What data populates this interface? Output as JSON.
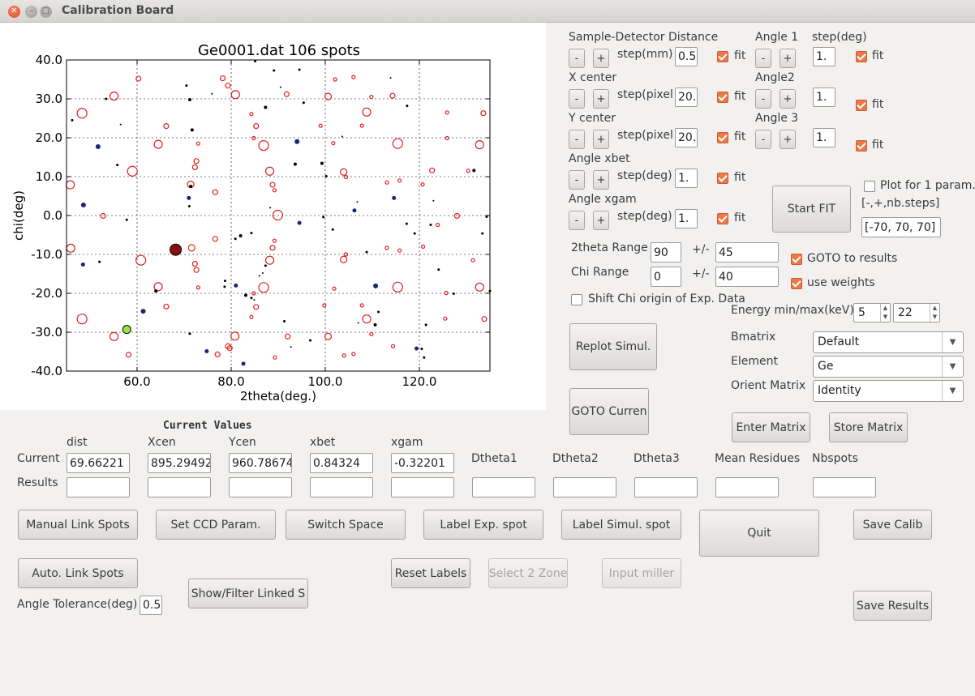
{
  "window": {
    "title": "Calibration Board"
  },
  "chart_data": {
    "type": "scatter",
    "title": "Ge0001.dat 106 spots",
    "xlabel": "2theta(deg.)",
    "ylabel": "chi(deg)",
    "xlim": [
      45,
      135
    ],
    "ylim": [
      -40,
      40
    ],
    "xticks": [
      "60.0",
      "80.0",
      "100.0",
      "120.0"
    ],
    "xtick_values": [
      60,
      80,
      100,
      120
    ],
    "yticks": [
      "40.0",
      "30.0",
      "20.0",
      "10.0",
      "0.0",
      "-10.0",
      "-20.0",
      "-30.0",
      "-40.0"
    ],
    "ytick_values": [
      40,
      30,
      20,
      10,
      0,
      -10,
      -20,
      -30,
      -40
    ],
    "grid": true,
    "series": [
      {
        "style": "simulated open red circles",
        "points": [
          [
            48.3,
            26.3,
            6
          ],
          [
            55.1,
            30.7,
            5
          ],
          [
            45.8,
            7.9,
            5
          ],
          [
            52.8,
            -0.1,
            3
          ],
          [
            45.9,
            -8.4,
            5
          ],
          [
            48.3,
            -26.6,
            6
          ],
          [
            55.1,
            -31.1,
            5
          ],
          [
            60.3,
            35.2,
            3
          ],
          [
            58.2,
            -35.8,
            3
          ],
          [
            59.0,
            11.4,
            6
          ],
          [
            60.8,
            -11.5,
            6
          ],
          [
            64.5,
            18.3,
            5
          ],
          [
            64.5,
            -18.3,
            5
          ],
          [
            66.2,
            23.0,
            3
          ],
          [
            66.2,
            -23.4,
            3
          ],
          [
            71.4,
            8.0,
            4
          ],
          [
            71.6,
            -8.3,
            4
          ],
          [
            72.3,
            12.4,
            3
          ],
          [
            72.3,
            -12.4,
            3
          ],
          [
            73.0,
            18.5,
            2
          ],
          [
            73.0,
            -18.5,
            2
          ],
          [
            72.6,
            14.0,
            3
          ],
          [
            72.6,
            -14.0,
            3
          ],
          [
            78.2,
            35.3,
            3
          ],
          [
            79.3,
            33.4,
            3
          ],
          [
            80.9,
            31.1,
            5
          ],
          [
            79.3,
            -33.6,
            3
          ],
          [
            80.8,
            -31.0,
            5
          ],
          [
            76.6,
            6.0,
            3
          ],
          [
            76.6,
            -6.0,
            3
          ],
          [
            77.1,
            -35.7,
            3
          ],
          [
            79.7,
            -34.1,
            3
          ],
          [
            84.3,
            26.1,
            2
          ],
          [
            84.3,
            -26.1,
            2
          ],
          [
            85.3,
            23.0,
            3
          ],
          [
            85.3,
            -23.5,
            3
          ],
          [
            84.8,
            19.9,
            2
          ],
          [
            84.8,
            -20.0,
            2
          ],
          [
            86.9,
            18.0,
            6
          ],
          [
            86.9,
            -18.5,
            6
          ],
          [
            88.2,
            11.4,
            5
          ],
          [
            88.8,
            7.9,
            3
          ],
          [
            88.2,
            -11.5,
            5
          ],
          [
            88.8,
            -8.3,
            3
          ],
          [
            89.9,
            0.1,
            6
          ],
          [
            89.2,
            -6.5,
            2
          ],
          [
            89.2,
            6.5,
            2
          ],
          [
            89.3,
            -36.5,
            2
          ],
          [
            92.0,
            -31.1,
            3
          ],
          [
            91.8,
            31.2,
            3
          ],
          [
            99.0,
            23.1,
            2
          ],
          [
            99.8,
            -23.1,
            2
          ],
          [
            101.7,
            18.6,
            2
          ],
          [
            101.9,
            -18.8,
            2
          ],
          [
            100.6,
            30.6,
            4
          ],
          [
            100.6,
            -31.1,
            4
          ],
          [
            102.1,
            35.0,
            2
          ],
          [
            104.0,
            -36.0,
            2
          ],
          [
            104.4,
            9.9,
            2
          ],
          [
            104.4,
            -10.0,
            2
          ],
          [
            103.9,
            11.2,
            4
          ],
          [
            103.9,
            -11.3,
            4
          ],
          [
            106.0,
            35.6,
            2
          ],
          [
            106.0,
            -35.6,
            2
          ],
          [
            107.8,
            -23.1,
            2
          ],
          [
            107.8,
            23.1,
            2
          ],
          [
            108.8,
            26.6,
            5
          ],
          [
            108.8,
            -26.6,
            5
          ],
          [
            109.8,
            -30.5,
            2
          ],
          [
            109.8,
            30.5,
            2
          ],
          [
            113.1,
            -8.3,
            2
          ],
          [
            114.4,
            -33.6,
            2
          ],
          [
            115.4,
            18.5,
            6
          ],
          [
            115.4,
            -18.4,
            6
          ],
          [
            114.3,
            30.8,
            3
          ],
          [
            115.8,
            9.0,
            2
          ],
          [
            115.8,
            -9.0,
            2
          ],
          [
            113.1,
            8.5,
            2
          ],
          [
            120.7,
            8.0,
            2
          ],
          [
            120.8,
            -8.0,
            2
          ],
          [
            122.7,
            11.6,
            3
          ],
          [
            123.9,
            -2.4,
            2
          ],
          [
            128.0,
            -0.1,
            3
          ],
          [
            125.9,
            26.5,
            2
          ],
          [
            125.5,
            -26.5,
            2
          ],
          [
            125.7,
            -19.9,
            2
          ],
          [
            125.9,
            19.9,
            2
          ],
          [
            130.4,
            11.5,
            2
          ],
          [
            131.4,
            -11.5,
            2
          ],
          [
            132.8,
            18.2,
            5
          ],
          [
            132.8,
            -18.4,
            5
          ],
          [
            133.6,
            26.3,
            3
          ],
          [
            133.8,
            -26.6,
            3
          ]
        ]
      },
      {
        "style": "experimental filled blue/black dots",
        "points": [
          [
            46.2,
            24.5,
            1.5
          ],
          [
            48.6,
            2.7,
            3
          ],
          [
            48.5,
            -12.6,
            2.5
          ],
          [
            51.7,
            17.7,
            3
          ],
          [
            52.0,
            -11.9,
            1.5
          ],
          [
            53.4,
            30.0,
            1.5
          ],
          [
            55.8,
            13.0,
            1.5
          ],
          [
            56.5,
            23.4,
            1
          ],
          [
            57.8,
            -1.1,
            1.5
          ],
          [
            61.3,
            -24.6,
            3
          ],
          [
            64.0,
            -19.4,
            2
          ],
          [
            70.5,
            33.4,
            1.5
          ],
          [
            71.2,
            -30.4,
            1.5
          ],
          [
            71.7,
            22.0,
            2
          ],
          [
            71.0,
            4.5,
            2.5
          ],
          [
            71.1,
            2.4,
            1.5
          ],
          [
            71.2,
            29.8,
            2
          ],
          [
            71.4,
            7.5,
            2
          ],
          [
            74.8,
            -34.9,
            2.5
          ],
          [
            75.9,
            31.3,
            1
          ],
          [
            78.6,
            -18.3,
            1.5
          ],
          [
            78.7,
            -16.8,
            1.5
          ],
          [
            81.0,
            -18.0,
            2.5
          ],
          [
            80.9,
            -6.0,
            1.5
          ],
          [
            82.0,
            -5.2,
            2
          ],
          [
            82.6,
            -38.1,
            2.5
          ],
          [
            83.1,
            -20.5,
            2
          ],
          [
            84.3,
            -4.5,
            1.5
          ],
          [
            84.3,
            -21.2,
            1.5
          ],
          [
            84.9,
            -21.7,
            1
          ],
          [
            85.1,
            39.7,
            1.5
          ],
          [
            86.0,
            -15.5,
            1
          ],
          [
            86.7,
            -14.8,
            1
          ],
          [
            87.3,
            -12.9,
            1.5
          ],
          [
            87.3,
            27.8,
            2
          ],
          [
            88.3,
            2.0,
            1
          ],
          [
            89.1,
            37.3,
            1.5
          ],
          [
            90.5,
            33.0,
            1
          ],
          [
            91.3,
            -27.2,
            1.5
          ],
          [
            92.7,
            -33.8,
            1
          ],
          [
            93.6,
            13.2,
            2
          ],
          [
            94.5,
            -1.9,
            2.5
          ],
          [
            94.0,
            19.0,
            3
          ],
          [
            94.5,
            37.5,
            1.5
          ],
          [
            95.4,
            29.0,
            1.5
          ],
          [
            96.8,
            -32.1,
            1.5
          ],
          [
            99.3,
            13.4,
            2
          ],
          [
            99.6,
            -0.4,
            1.5
          ],
          [
            100.2,
            10.1,
            1.5
          ],
          [
            101.6,
            -3.6,
            1.5
          ],
          [
            103.6,
            20.3,
            1
          ],
          [
            106.2,
            1.3,
            2.5
          ],
          [
            106.8,
            3.5,
            1
          ],
          [
            107.0,
            -27.6,
            1
          ],
          [
            108.8,
            -9.4,
            1.5
          ],
          [
            110.7,
            -18.1,
            3
          ],
          [
            110.6,
            -28.1,
            2
          ],
          [
            111.3,
            -24.8,
            1.5
          ],
          [
            113.9,
            35.4,
            1
          ],
          [
            114.6,
            4.5,
            2.5
          ],
          [
            117.3,
            -2.1,
            1.5
          ],
          [
            117.4,
            28.2,
            1.5
          ],
          [
            119.0,
            -4.6,
            1.5
          ],
          [
            119.4,
            -34.2,
            2.5
          ],
          [
            120.5,
            -34.3,
            1.5
          ],
          [
            121.0,
            -36.5,
            1.5
          ],
          [
            121.4,
            -28.1,
            1.5
          ],
          [
            122.4,
            -2.4,
            1.5
          ],
          [
            124.1,
            -13.9,
            1.5
          ],
          [
            127.3,
            -20.1,
            1.5
          ],
          [
            131.6,
            11.6,
            2
          ],
          [
            133.4,
            -4.6,
            1.5
          ],
          [
            134.3,
            -0.3,
            1.5
          ],
          [
            135.0,
            -19.4,
            1.5
          ],
          [
            123.0,
            3.8,
            1
          ]
        ]
      }
    ],
    "highlights": [
      {
        "x": 68.2,
        "y": -8.8,
        "color": "#8c1010",
        "r": 7
      },
      {
        "x": 57.8,
        "y": -29.3,
        "color": "#9be34a",
        "r": 5
      }
    ]
  },
  "sample_detector": {
    "label": "Sample-Detector Distance",
    "step_label": "step(mm)",
    "step_value": "0.5",
    "fit": "fit"
  },
  "xcenter": {
    "label": "X center",
    "step_label": "step(pixel)",
    "step_value": "20.",
    "fit": "fit"
  },
  "ycenter": {
    "label": "Y center",
    "step_label": "step(pixel)",
    "step_value": "20.",
    "fit": "fit"
  },
  "xbet": {
    "label": "Angle xbet",
    "step_label": "step(deg)",
    "step_value": "1.",
    "fit": "fit"
  },
  "xgam": {
    "label": "Angle xgam",
    "step_label": "step(deg)",
    "step_value": "1.",
    "fit": "fit"
  },
  "angle1": {
    "label": "Angle 1",
    "step_label": "step(deg)",
    "step_value": "1.",
    "fit": "fit"
  },
  "angle2": {
    "label": "Angle2",
    "step_value": "1.",
    "fit": "fit"
  },
  "angle3": {
    "label": "Angle 3",
    "step_value": "1.",
    "fit": "fit"
  },
  "minus": "-",
  "plus": "+",
  "start_fit": "Start FIT",
  "plot_one_param": "Plot for 1 param.",
  "nb_steps_label": "[-,+,nb.steps]",
  "nb_steps_value": "[-70, 70, 70]",
  "twotheta_range": {
    "label": "2theta Range",
    "value": "90",
    "pm": "+/-",
    "delta": "45"
  },
  "chi_range": {
    "label": "Chi Range",
    "value": "0",
    "pm": "+/-",
    "delta": "40"
  },
  "goto_results": "GOTO to results",
  "use_weights": "use weights",
  "shift_chi": "Shift Chi origin of Exp. Data",
  "energy": {
    "label": "Energy min/max(keV):",
    "min": "5",
    "max": "22"
  },
  "replot_simul": "Replot Simul.",
  "goto_current": "GOTO Curren",
  "bmatrix": {
    "label": "Bmatrix",
    "value": "Default"
  },
  "element": {
    "label": "Element",
    "value": "Ge"
  },
  "orient_matrix": {
    "label": "Orient Matrix",
    "value": "Identity"
  },
  "enter_matrix": "Enter Matrix",
  "store_matrix": "Store Matrix",
  "current_values_title": "Current Values",
  "columns": [
    "dist",
    "Xcen",
    "Ycen",
    "xbet",
    "xgam"
  ],
  "current_label": "Current",
  "results_label": "Results",
  "current_values": [
    "69.66221",
    "895.29492",
    "960.78674",
    "0.84324",
    "-0.32201"
  ],
  "extra_columns": [
    "Dtheta1",
    "Dtheta2",
    "Dtheta3",
    "Mean Residues",
    "Nbspots"
  ],
  "buttons": {
    "manual_link": "Manual Link Spots",
    "set_ccd": "Set CCD Param.",
    "switch_space": "Switch Space",
    "label_exp": "Label Exp. spot",
    "label_simul": "Label Simul. spot",
    "quit": "Quit",
    "save_calib": "Save Calib",
    "auto_link": "Auto. Link Spots",
    "reset_labels": "Reset Labels",
    "select_zone": "Select 2 Zone",
    "input_miller": "Input miller",
    "show_filter": "Show/Filter Linked S",
    "save_results": "Save Results"
  },
  "angle_tolerance": {
    "label": "Angle Tolerance(deg)",
    "value": "0.5"
  }
}
